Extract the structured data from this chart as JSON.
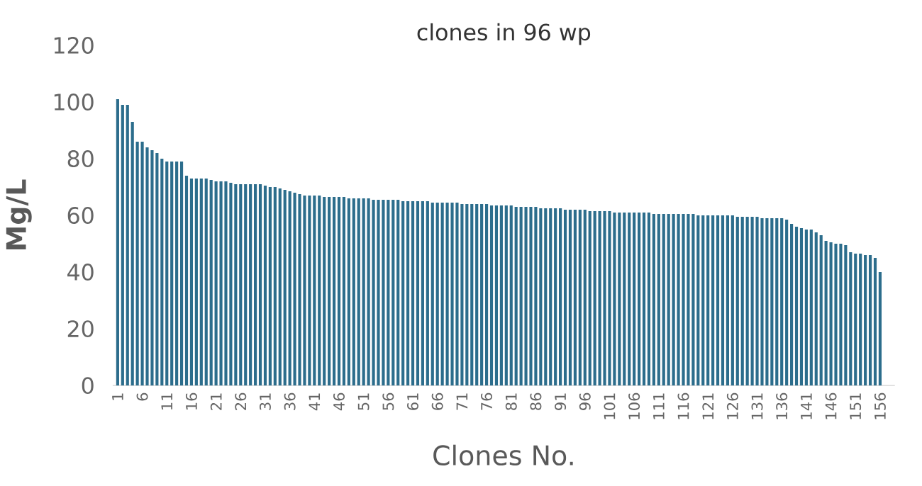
{
  "chart_data": {
    "type": "bar",
    "title": "clones in 96 wp",
    "xlabel": "Clones No.",
    "ylabel": "Mg/L",
    "color": "#2c6d8c",
    "categories": [
      "1",
      null,
      null,
      null,
      null,
      "6",
      null,
      null,
      null,
      null,
      "11",
      null,
      null,
      null,
      null,
      "16",
      null,
      null,
      null,
      null,
      "21",
      null,
      null,
      null,
      null,
      "26",
      null,
      null,
      null,
      null,
      "31",
      null,
      null,
      null,
      null,
      "36",
      null,
      null,
      null,
      null,
      "41",
      null,
      null,
      null,
      null,
      "46",
      null,
      null,
      null,
      null,
      "51",
      null,
      null,
      null,
      null,
      "56",
      null,
      null,
      null,
      null,
      "61",
      null,
      null,
      null,
      null,
      "66",
      null,
      null,
      null,
      null,
      "71",
      null,
      null,
      null,
      null,
      "76",
      null,
      null,
      null,
      null,
      "81",
      null,
      null,
      null,
      null,
      "86",
      null,
      null,
      null,
      null,
      "91",
      null,
      null,
      null,
      null,
      "96",
      null,
      null,
      null,
      null,
      "101",
      null,
      null,
      null,
      null,
      "106",
      null,
      null,
      null,
      null,
      "111",
      null,
      null,
      null,
      null,
      "116",
      null,
      null,
      null,
      null,
      "121",
      null,
      null,
      null,
      null,
      "126",
      null,
      null,
      null,
      null,
      "131",
      null,
      null,
      null,
      null,
      "136",
      null,
      null,
      null,
      null,
      "141",
      null,
      null,
      null,
      null,
      "146",
      null,
      null,
      null,
      null,
      "151",
      null,
      null,
      null,
      null,
      "156"
    ],
    "values": [
      101,
      99,
      99,
      93,
      86,
      86,
      84,
      83,
      82,
      80,
      79,
      79,
      79,
      79,
      74,
      73,
      73,
      73,
      73,
      72.5,
      72,
      72,
      72,
      71.5,
      71,
      71,
      71,
      71,
      71,
      71,
      70.5,
      70,
      70,
      69.5,
      69,
      68.5,
      68,
      67.5,
      67,
      67,
      67,
      67,
      66.5,
      66.5,
      66.5,
      66.5,
      66.5,
      66,
      66,
      66,
      66,
      66,
      65.5,
      65.5,
      65.5,
      65.5,
      65.5,
      65.5,
      65,
      65,
      65,
      65,
      65,
      65,
      64.5,
      64.5,
      64.5,
      64.5,
      64.5,
      64.5,
      64,
      64,
      64,
      64,
      64,
      64,
      63.5,
      63.5,
      63.5,
      63.5,
      63.5,
      63,
      63,
      63,
      63,
      63,
      62.5,
      62.5,
      62.5,
      62.5,
      62.5,
      62,
      62,
      62,
      62,
      62,
      61.5,
      61.5,
      61.5,
      61.5,
      61.5,
      61,
      61,
      61,
      61,
      61,
      61,
      61,
      61,
      60.5,
      60.5,
      60.5,
      60.5,
      60.5,
      60.5,
      60.5,
      60.5,
      60.5,
      60,
      60,
      60,
      60,
      60,
      60,
      60,
      60,
      59.5,
      59.5,
      59.5,
      59.5,
      59.5,
      59,
      59,
      59,
      59,
      59,
      58.5,
      57,
      56,
      55.5,
      55,
      55,
      54,
      53,
      51,
      50.5,
      50,
      50,
      49.5,
      47,
      46.5,
      46.5,
      46,
      46,
      45,
      40
    ],
    "ylim": [
      0,
      120
    ],
    "yticks": [
      0,
      20,
      40,
      60,
      80,
      100,
      120
    ]
  }
}
